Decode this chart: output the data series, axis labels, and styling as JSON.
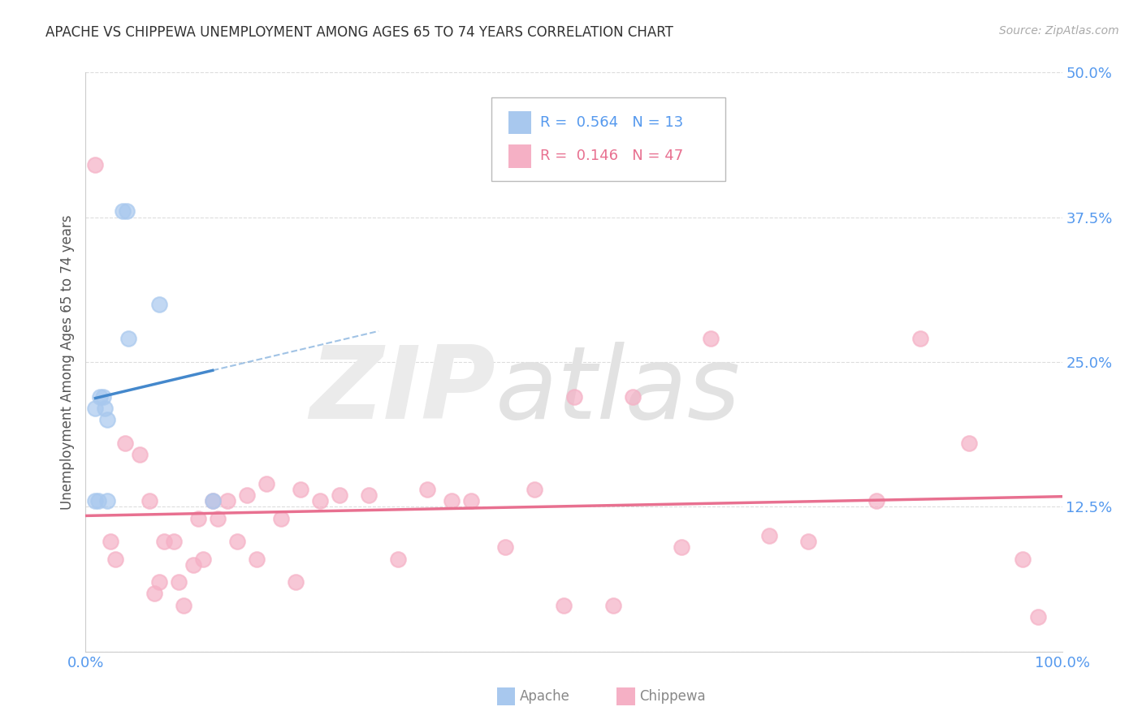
{
  "title": "APACHE VS CHIPPEWA UNEMPLOYMENT AMONG AGES 65 TO 74 YEARS CORRELATION CHART",
  "source": "Source: ZipAtlas.com",
  "ylabel": "Unemployment Among Ages 65 to 74 years",
  "xlim": [
    0,
    1.0
  ],
  "ylim": [
    0,
    0.5
  ],
  "xtick_positions": [
    0.0,
    0.25,
    0.5,
    0.75,
    1.0
  ],
  "xticklabels": [
    "0.0%",
    "",
    "",
    "",
    "100.0%"
  ],
  "ytick_positions": [
    0.0,
    0.125,
    0.25,
    0.375,
    0.5
  ],
  "yticklabels": [
    "",
    "12.5%",
    "25.0%",
    "37.5%",
    "50.0%"
  ],
  "apache_R": 0.564,
  "apache_N": 13,
  "chippewa_R": 0.146,
  "chippewa_N": 47,
  "apache_dot_color": "#a8c8ee",
  "chippewa_dot_color": "#f5b0c5",
  "apache_line_color": "#4488cc",
  "chippewa_line_color": "#e87090",
  "grid_color": "#dddddd",
  "tick_color": "#5599ee",
  "apache_x": [
    0.01,
    0.01,
    0.013,
    0.015,
    0.018,
    0.02,
    0.022,
    0.022,
    0.038,
    0.042,
    0.044,
    0.075,
    0.13
  ],
  "apache_y": [
    0.13,
    0.21,
    0.13,
    0.22,
    0.22,
    0.21,
    0.2,
    0.13,
    0.38,
    0.38,
    0.27,
    0.3,
    0.13
  ],
  "chippewa_x": [
    0.01,
    0.025,
    0.03,
    0.04,
    0.055,
    0.065,
    0.07,
    0.075,
    0.08,
    0.09,
    0.095,
    0.1,
    0.11,
    0.115,
    0.12,
    0.13,
    0.135,
    0.145,
    0.155,
    0.165,
    0.175,
    0.185,
    0.2,
    0.215,
    0.22,
    0.24,
    0.26,
    0.29,
    0.32,
    0.35,
    0.375,
    0.395,
    0.43,
    0.46,
    0.49,
    0.5,
    0.54,
    0.56,
    0.61,
    0.64,
    0.7,
    0.74,
    0.81,
    0.855,
    0.905,
    0.96,
    0.975
  ],
  "chippewa_y": [
    0.42,
    0.095,
    0.08,
    0.18,
    0.17,
    0.13,
    0.05,
    0.06,
    0.095,
    0.095,
    0.06,
    0.04,
    0.075,
    0.115,
    0.08,
    0.13,
    0.115,
    0.13,
    0.095,
    0.135,
    0.08,
    0.145,
    0.115,
    0.06,
    0.14,
    0.13,
    0.135,
    0.135,
    0.08,
    0.14,
    0.13,
    0.13,
    0.09,
    0.14,
    0.04,
    0.22,
    0.04,
    0.22,
    0.09,
    0.27,
    0.1,
    0.095,
    0.13,
    0.27,
    0.18,
    0.08,
    0.03
  ]
}
